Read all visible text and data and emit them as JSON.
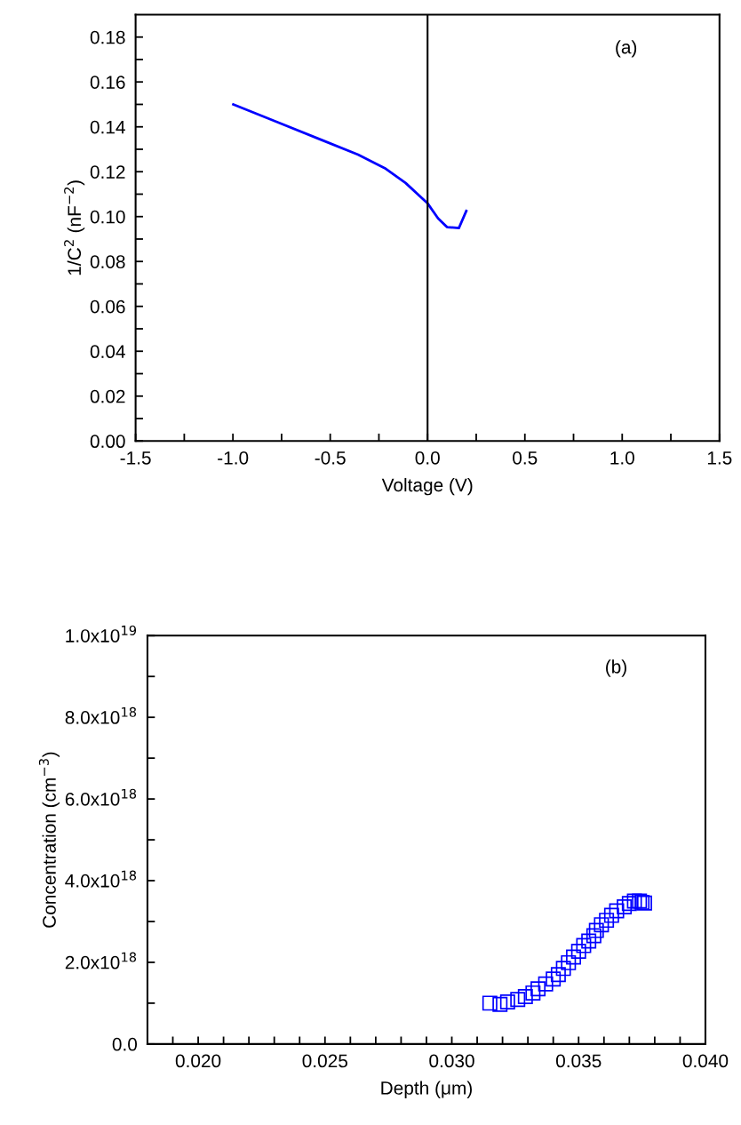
{
  "chart_data": [
    {
      "type": "line",
      "xlabel": "Voltage (V)",
      "ylabel": "1/C$^{2}$ (nF$^{−2}$)",
      "annotations": [
        "(a)"
      ],
      "series": [
        {
          "color": "#0000ff",
          "x": [
            -0.998,
            -0.768,
            -0.54,
            -0.357,
            -0.22,
            -0.113,
            0.001,
            0.054,
            0.1,
            0.161,
            0.199
          ],
          "values": [
            0.15,
            0.142,
            0.134,
            0.1276,
            0.1216,
            0.115,
            0.1058,
            0.0992,
            0.0953,
            0.0949,
            0.1025
          ]
        }
      ],
      "xlim": [
        -1.5,
        1.5
      ],
      "ylim": [
        0,
        0.19
      ],
      "xticks": [
        -1.5,
        {
          "value": -1.25,
          "label": null
        },
        {
          "value": -1,
          "label": "-1.0"
        },
        {
          "value": -0.75,
          "label": null
        },
        -0.5,
        {
          "value": -0.25,
          "label": null
        },
        {
          "value": 0,
          "label": "0.0"
        },
        {
          "value": 0.25,
          "label": null
        },
        0.5,
        {
          "value": 0.75,
          "label": null
        },
        {
          "value": 1,
          "label": "1.0"
        },
        {
          "value": 1.25,
          "label": null
        },
        1.5
      ],
      "yticks": [
        {
          "value": 0,
          "label": "0.00"
        },
        {
          "value": 0.01,
          "label": null
        },
        {
          "value": 0.02,
          "label": "0.02"
        },
        {
          "value": 0.03,
          "label": null
        },
        {
          "value": 0.04,
          "label": "0.04"
        },
        {
          "value": 0.05,
          "label": null
        },
        {
          "value": 0.06,
          "label": "0.06"
        },
        {
          "value": 0.07,
          "label": null
        },
        {
          "value": 0.08,
          "label": "0.08"
        },
        {
          "value": 0.09,
          "label": null
        },
        {
          "value": 0.1,
          "label": "0.10"
        },
        {
          "value": 0.11,
          "label": null
        },
        {
          "value": 0.12,
          "label": "0.12"
        },
        {
          "value": 0.13,
          "label": null
        },
        {
          "value": 0.14,
          "label": "0.14"
        },
        {
          "value": 0.15,
          "label": null
        },
        {
          "value": 0.16,
          "label": "0.16"
        },
        {
          "value": 0.17,
          "label": null
        },
        {
          "value": 0.18,
          "label": "0.18"
        }
      ],
      "ref_lines": [
        {
          "axis": "x",
          "value": 0,
          "color": "#000000"
        }
      ],
      "marker": "none",
      "line_style": "solid",
      "grid": false,
      "legend": false
    },
    {
      "type": "scatter",
      "xlabel": "Depth (μm)",
      "ylabel": "Concentration (cm$^{−3}$)",
      "annotations": [
        "(b)"
      ],
      "x": [
        0.0315,
        0.0319,
        0.0322,
        0.0326,
        0.0329,
        0.0332,
        0.0334,
        0.0337,
        0.034,
        0.0342,
        0.0344,
        0.0346,
        0.0348,
        0.035,
        0.0352,
        0.0354,
        0.0356,
        0.0357,
        0.0359,
        0.0361,
        0.0363,
        0.0365,
        0.0368,
        0.037,
        0.0372,
        0.0374,
        0.0375,
        0.0376
      ],
      "series": [
        {
          "color": "#0000ff",
          "values": [
            1e+18,
            9.7e+17,
            1.03e+18,
            1.09e+18,
            1.16e+18,
            1.25e+18,
            1.35e+18,
            1.47e+18,
            1.59e+18,
            1.7e+18,
            1.85e+18,
            1.99e+18,
            2.13e+18,
            2.27e+18,
            2.41e+18,
            2.52e+18,
            2.65e+18,
            2.78e+18,
            2.92e+18,
            3.03e+18,
            3.15e+18,
            3.26e+18,
            3.36e+18,
            3.44e+18,
            3.5e+18,
            3.5e+18,
            3.47e+18,
            3.45e+18
          ]
        }
      ],
      "xlim": [
        0.018,
        0.04
      ],
      "ylim": [
        0,
        1e+19
      ],
      "xticks": [
        {
          "value": 0.018,
          "label": null
        },
        {
          "value": 0.019,
          "label": null
        },
        {
          "value": 0.02,
          "label": "0.020"
        },
        {
          "value": 0.021,
          "label": null
        },
        {
          "value": 0.022,
          "label": null
        },
        {
          "value": 0.023,
          "label": null
        },
        {
          "value": 0.024,
          "label": null
        },
        {
          "value": 0.025,
          "label": "0.025"
        },
        {
          "value": 0.026,
          "label": null
        },
        {
          "value": 0.027,
          "label": null
        },
        {
          "value": 0.028,
          "label": null
        },
        {
          "value": 0.029,
          "label": null
        },
        {
          "value": 0.03,
          "label": "0.030"
        },
        {
          "value": 0.031,
          "label": null
        },
        {
          "value": 0.032,
          "label": null
        },
        {
          "value": 0.033,
          "label": null
        },
        {
          "value": 0.034,
          "label": null
        },
        {
          "value": 0.035,
          "label": "0.035"
        },
        {
          "value": 0.036,
          "label": null
        },
        {
          "value": 0.037,
          "label": null
        },
        {
          "value": 0.038,
          "label": null
        },
        {
          "value": 0.039,
          "label": null
        },
        {
          "value": 0.04,
          "label": "0.040"
        }
      ],
      "yticks": [
        {
          "value": 0,
          "label": "0.0"
        },
        {
          "value": 1e+18,
          "label": null
        },
        {
          "value": 2e+18,
          "label": "2.0x10$^{18}$"
        },
        {
          "value": 3e+18,
          "label": null
        },
        {
          "value": 4e+18,
          "label": "4.0x10$^{18}$"
        },
        {
          "value": 5e+18,
          "label": null
        },
        {
          "value": 6e+18,
          "label": "6.0x10$^{18}$"
        },
        {
          "value": 7e+18,
          "label": null
        },
        {
          "value": 8e+18,
          "label": "8.0x10$^{18}$"
        },
        {
          "value": 9e+18,
          "label": null
        },
        {
          "value": 1e+19,
          "label": "1.0x10$^{19}$"
        }
      ],
      "marker": "square",
      "grid": false,
      "legend": false
    }
  ]
}
